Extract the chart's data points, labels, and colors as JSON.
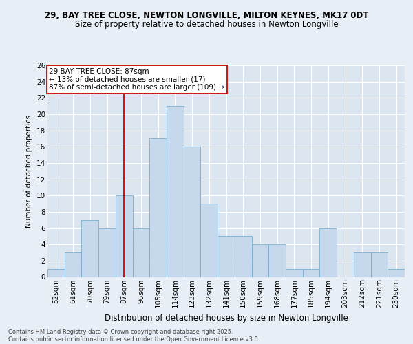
{
  "title1": "29, BAY TREE CLOSE, NEWTON LONGVILLE, MILTON KEYNES, MK17 0DT",
  "title2": "Size of property relative to detached houses in Newton Longville",
  "xlabel": "Distribution of detached houses by size in Newton Longville",
  "ylabel": "Number of detached properties",
  "categories": [
    "52sqm",
    "61sqm",
    "70sqm",
    "79sqm",
    "87sqm",
    "96sqm",
    "105sqm",
    "114sqm",
    "123sqm",
    "132sqm",
    "141sqm",
    "150sqm",
    "159sqm",
    "168sqm",
    "177sqm",
    "185sqm",
    "194sqm",
    "203sqm",
    "212sqm",
    "221sqm",
    "230sqm"
  ],
  "values": [
    1,
    3,
    7,
    6,
    10,
    6,
    17,
    21,
    16,
    9,
    5,
    5,
    4,
    4,
    1,
    1,
    6,
    0,
    3,
    3,
    1
  ],
  "bar_color": "#c5d8ec",
  "bar_edge_color": "#7aaed0",
  "vline_x_index": 4,
  "vline_color": "#cc0000",
  "annotation_line1": "29 BAY TREE CLOSE: 87sqm",
  "annotation_line2": "← 13% of detached houses are smaller (17)",
  "annotation_line3": "87% of semi-detached houses are larger (109) →",
  "annotation_box_color": "#ffffff",
  "annotation_box_edge": "#cc0000",
  "ylim": [
    0,
    26
  ],
  "yticks": [
    0,
    2,
    4,
    6,
    8,
    10,
    12,
    14,
    16,
    18,
    20,
    22,
    24,
    26
  ],
  "background_color": "#e8eef5",
  "plot_bg_color": "#dce6f0",
  "grid_color": "#ffffff",
  "footer": "Contains HM Land Registry data © Crown copyright and database right 2025.\nContains public sector information licensed under the Open Government Licence v3.0.",
  "title1_fontsize": 8.5,
  "title2_fontsize": 8.5,
  "xlabel_fontsize": 8.5,
  "ylabel_fontsize": 7.5,
  "tick_fontsize": 7.5,
  "annotation_fontsize": 7.5,
  "footer_fontsize": 6.0
}
